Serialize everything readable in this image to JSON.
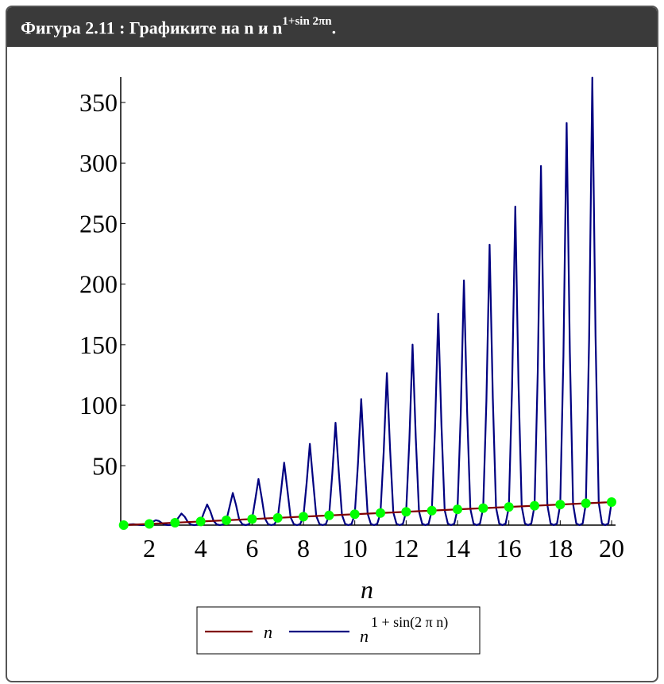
{
  "header": {
    "title": "Фигура 2.11 : Графиките на n и n",
    "title_sup": "1+sin 2πn",
    "title_end": "."
  },
  "chart_data": {
    "type": "line",
    "x_label": "n",
    "xlim": [
      1,
      20
    ],
    "xticks": [
      2,
      4,
      6,
      8,
      10,
      12,
      14,
      16,
      18,
      20
    ],
    "ylim": [
      1,
      371
    ],
    "yticks": [
      50,
      100,
      150,
      200,
      250,
      300,
      350
    ],
    "series": [
      {
        "name": "n",
        "color": "#800000",
        "x": [
          1,
          20
        ],
        "values": [
          1,
          20
        ]
      },
      {
        "name": "n",
        "name_sup": "1 + sin(2 π n)",
        "color": "#000080",
        "x": [
          1,
          1.125,
          1.25,
          1.375,
          1.5,
          1.625,
          1.75,
          1.875,
          2,
          2.125,
          2.25,
          2.375,
          2.5,
          2.625,
          2.75,
          2.875,
          3,
          3.125,
          3.25,
          3.375,
          3.5,
          3.625,
          3.75,
          3.875,
          4,
          4.125,
          4.25,
          4.375,
          4.5,
          4.625,
          4.75,
          4.875,
          5,
          5.125,
          5.25,
          5.375,
          5.5,
          5.625,
          5.75,
          5.875,
          6,
          6.125,
          6.25,
          6.375,
          6.5,
          6.625,
          6.75,
          6.875,
          7,
          7.125,
          7.25,
          7.375,
          7.5,
          7.625,
          7.75,
          7.875,
          8,
          8.125,
          8.25,
          8.375,
          8.5,
          8.625,
          8.75,
          8.875,
          9,
          9.125,
          9.25,
          9.375,
          9.5,
          9.625,
          9.75,
          9.875,
          10,
          10.125,
          10.25,
          10.375,
          10.5,
          10.625,
          10.75,
          10.875,
          11,
          11.125,
          11.25,
          11.375,
          11.5,
          11.625,
          11.75,
          11.875,
          12,
          12.125,
          12.25,
          12.375,
          12.5,
          12.625,
          12.75,
          12.875,
          13,
          13.125,
          13.25,
          13.375,
          13.5,
          13.625,
          13.75,
          13.875,
          14,
          14.125,
          14.25,
          14.375,
          14.5,
          14.625,
          14.75,
          14.875,
          15,
          15.125,
          15.25,
          15.375,
          15.5,
          15.625,
          15.75,
          15.875,
          16,
          16.125,
          16.25,
          16.375,
          16.5,
          16.625,
          16.75,
          16.875,
          17,
          17.125,
          17.25,
          17.375,
          17.5,
          17.625,
          17.75,
          17.875,
          18,
          18.125,
          18.25,
          18.375,
          18.5,
          18.625,
          18.75,
          18.875,
          19,
          19.125,
          19.25,
          19.375,
          19.5,
          19.625,
          19.75,
          19.875,
          20
        ],
        "values": [
          1,
          1.22,
          1.56,
          1.72,
          1.5,
          1.15,
          1,
          1.2,
          2,
          3.62,
          5.06,
          4.38,
          2.5,
          1.33,
          1,
          1.36,
          3,
          6.99,
          10.56,
          7.98,
          3.5,
          1.46,
          1,
          1.49,
          4,
          11.24,
          18.06,
          12.42,
          4.5,
          1.57,
          1,
          1.59,
          5,
          16.28,
          27.56,
          17.65,
          5.5,
          1.66,
          1,
          1.68,
          6,
          22.06,
          39.06,
          23.62,
          6.5,
          1.74,
          1,
          1.76,
          7,
          28.56,
          52.56,
          30.3,
          7.5,
          1.81,
          1,
          1.83,
          8,
          35.74,
          68.06,
          37.64,
          8.5,
          1.88,
          1,
          1.9,
          9,
          43.57,
          85.56,
          45.63,
          9.5,
          1.94,
          1,
          1.96,
          10,
          52.04,
          105.06,
          54.25,
          10.5,
          2,
          1,
          2.01,
          11,
          61.11,
          126.56,
          63.48,
          11.5,
          2.05,
          1,
          2.06,
          12,
          70.79,
          150.06,
          73.3,
          12.5,
          2.1,
          1,
          2.11,
          13,
          81.04,
          175.56,
          83.7,
          13.5,
          2.15,
          1,
          2.16,
          14,
          91.86,
          203.06,
          94.66,
          14.5,
          2.19,
          1,
          2.2,
          15,
          103.25,
          232.56,
          106.18,
          15.5,
          2.24,
          1,
          2.25,
          16,
          115.16,
          264.06,
          118.23,
          16.5,
          2.28,
          1,
          2.29,
          17,
          127.62,
          297.56,
          130.83,
          17.5,
          2.32,
          1,
          2.33,
          18,
          140.61,
          333.06,
          143.94,
          18.5,
          2.36,
          1,
          2.36,
          19,
          154.12,
          370.56,
          157.57,
          19.5,
          2.39,
          1,
          2.4,
          20
        ]
      }
    ],
    "markers": {
      "color": "#00ff00",
      "x": [
        1,
        2,
        3,
        4,
        5,
        6,
        7,
        8,
        9,
        10,
        11,
        12,
        13,
        14,
        15,
        16,
        17,
        18,
        19,
        20
      ],
      "values": [
        1,
        2,
        3,
        4,
        5,
        6,
        7,
        8,
        9,
        10,
        11,
        12,
        13,
        14,
        15,
        16,
        17,
        18,
        19,
        20
      ]
    }
  }
}
